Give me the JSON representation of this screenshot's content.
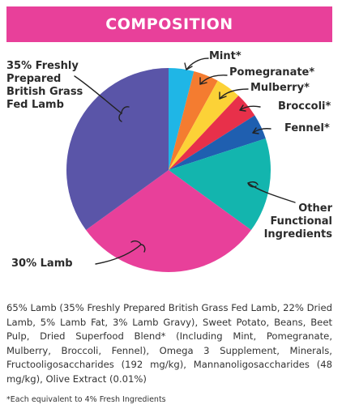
{
  "header": {
    "title": "COMPOSITION",
    "color": "#e8409a"
  },
  "chart_data": {
    "type": "pie",
    "title": "COMPOSITION",
    "slices": [
      {
        "label": "Mint*",
        "value": 4,
        "color": "#1fb6e6"
      },
      {
        "label": "Pomegranate*",
        "value": 4,
        "color": "#f47c30"
      },
      {
        "label": "Mulberry*",
        "value": 4,
        "color": "#fcd237"
      },
      {
        "label": "Broccoli*",
        "value": 4,
        "color": "#e8304a"
      },
      {
        "label": "Fennel*",
        "value": 4,
        "color": "#1f5fb0"
      },
      {
        "label": "Other Functional Ingredients",
        "value": 15,
        "color": "#13b5ae"
      },
      {
        "label": "30% Lamb",
        "value": 30,
        "color": "#e8409a"
      },
      {
        "label": "35% Freshly Prepared British Grass Fed Lamb",
        "value": 35,
        "color": "#5a55a8"
      }
    ]
  },
  "labels": {
    "mint": "Mint*",
    "pomegranate": "Pomegranate*",
    "mulberry": "Mulberry*",
    "broccoli": "Broccoli*",
    "fennel": "Fennel*",
    "other_line1": "Other",
    "other_line2": "Functional",
    "other_line3": "Ingredients",
    "lamb30": "30% Lamb",
    "fresh_line1": "35% Freshly",
    "fresh_line2": "Prepared",
    "fresh_line3": "British Grass",
    "fresh_line4": "Fed Lamb"
  },
  "composition_text": "65% Lamb (35% Freshly Prepared British Grass Fed Lamb, 22% Dried Lamb, 5% Lamb Fat, 3% Lamb Gravy), Sweet Potato, Beans, Beet Pulp, Dried Superfood Blend* (Including Mint, Pomegranate, Mulberry, Broccoli, Fennel), Omega 3 Supplement, Minerals, Fructooligosaccharides (192 mg/kg), Mannanoligosaccharides (48 mg/kg), Olive Extract (0.01%)",
  "footnote": "*Each equivalent to 4% Fresh Ingredients"
}
